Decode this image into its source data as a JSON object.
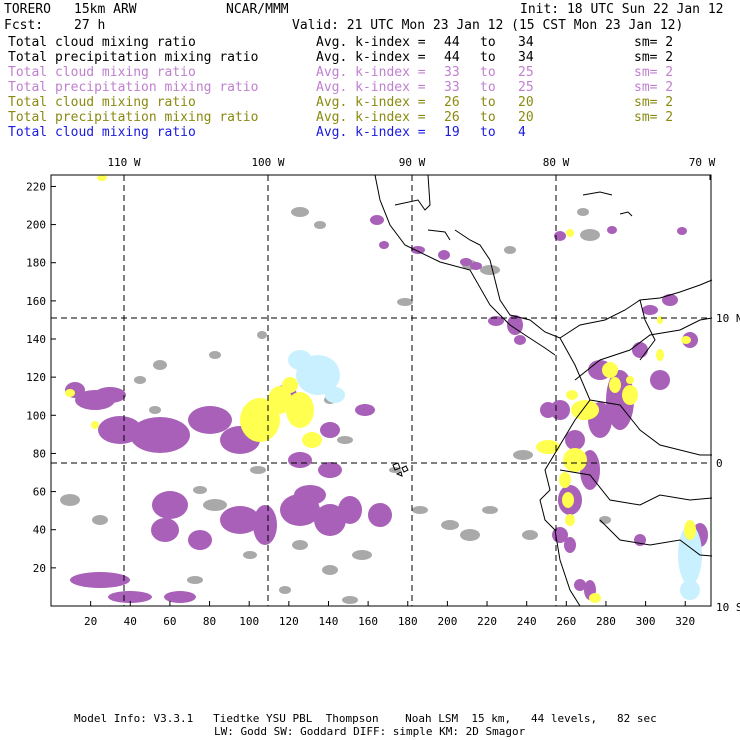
{
  "header": {
    "model": "TORERO",
    "resolution": "15km ARW",
    "institution": "NCAR/MMM",
    "init": "Init: 18 UTC Sun 22 Jan 12",
    "fcst_label": "Fcst:",
    "fcst_value": "27 h",
    "valid": "Valid: 21 UTC Mon 23 Jan 12 (15 CST Mon 23 Jan 12)"
  },
  "legend": [
    {
      "field": "Total cloud mixing ratio",
      "index": "Avg. k-index =",
      "from": "44",
      "to_word": "to",
      "to": "34",
      "sm": "sm= 2",
      "color": "#000000"
    },
    {
      "field": "Total precipitation mixing ratio",
      "index": "Avg. k-index =",
      "from": "44",
      "to_word": "to",
      "to": "34",
      "sm": "sm= 2",
      "color": "#000000"
    },
    {
      "field": "Total cloud mixing ratio",
      "index": "Avg. k-index =",
      "from": "33",
      "to_word": "to",
      "to": "25",
      "sm": "sm= 2",
      "color": "#c080d0"
    },
    {
      "field": "Total precipitation mixing ratio",
      "index": "Avg. k-index =",
      "from": "33",
      "to_word": "to",
      "to": "25",
      "sm": "sm= 2",
      "color": "#c080d0"
    },
    {
      "field": "Total cloud mixing ratio",
      "index": "Avg. k-index =",
      "from": "26",
      "to_word": "to",
      "to": "20",
      "sm": "sm= 2",
      "color": "#8a8a10"
    },
    {
      "field": "Total precipitation mixing ratio",
      "index": "Avg. k-index =",
      "from": "26",
      "to_word": "to",
      "to": "20",
      "sm": "sm= 2",
      "color": "#8a8a10"
    },
    {
      "field": "Total cloud mixing ratio",
      "index": "Avg. k-index =",
      "from": "19",
      "to_word": "to",
      "to": "4",
      "sm": "",
      "color": "#1a1adf"
    }
  ],
  "axes": {
    "x_ticks": [
      "20",
      "40",
      "60",
      "80",
      "100",
      "120",
      "140",
      "160",
      "180",
      "200",
      "220",
      "240",
      "260",
      "280",
      "300",
      "320"
    ],
    "y_ticks": [
      "20",
      "40",
      "60",
      "80",
      "100",
      "120",
      "140",
      "160",
      "180",
      "200",
      "220"
    ],
    "lon_labels": [
      "110 W",
      "100 W",
      "90 W",
      "80 W",
      "70 W"
    ],
    "lat_labels": [
      "10 N",
      "0",
      "10 S"
    ]
  },
  "colors": {
    "gray_cloud": "#a9a9a9",
    "purple_precip": "#a860b8",
    "yellow_precip": "#ffff50",
    "cyan_cloud": "#c8f0ff",
    "coast": "#000000"
  },
  "footer": {
    "line1": "Model Info: V3.3.1   Tiedtke YSU PBL  Thompson    Noah LSM  15 km,   44 levels,   82 sec",
    "line2": "LW: Godd SW: Goddard DIFF: simple KM: 2D Smagor"
  }
}
